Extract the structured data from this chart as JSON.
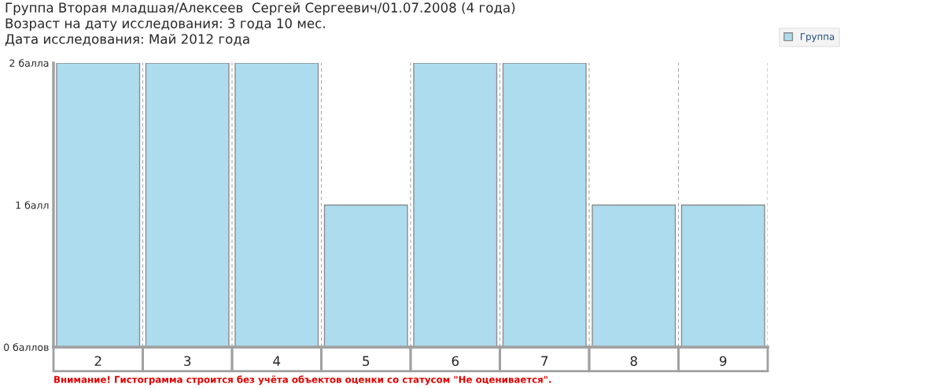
{
  "chart_data": {
    "type": "bar",
    "title": "Группа Вторая младшая/Алексеев  Сергей Сергеевич/01.07.2008 (4 года)",
    "subtitle": "Возраст на дату исследования: 3 года 10 мес.\nДата исследования: Май 2012 года",
    "categories": [
      "2",
      "3",
      "4",
      "5",
      "6",
      "7",
      "8",
      "9"
    ],
    "series": [
      {
        "name": "Группа",
        "color": "#acdcee",
        "values": [
          2,
          2,
          2,
          1,
          2,
          2,
          1,
          1
        ]
      }
    ],
    "ylim": [
      0,
      2
    ],
    "yticks": [
      {
        "value": 0,
        "label": "0 баллов"
      },
      {
        "value": 1,
        "label": "1 балл"
      },
      {
        "value": 2,
        "label": "2 балла"
      }
    ],
    "grid": "x",
    "legend": "top right",
    "annotations": [
      "Внимание! Гистограмма строится без учёта объектов оценки со статусом \"Не оценивается\"."
    ]
  }
}
